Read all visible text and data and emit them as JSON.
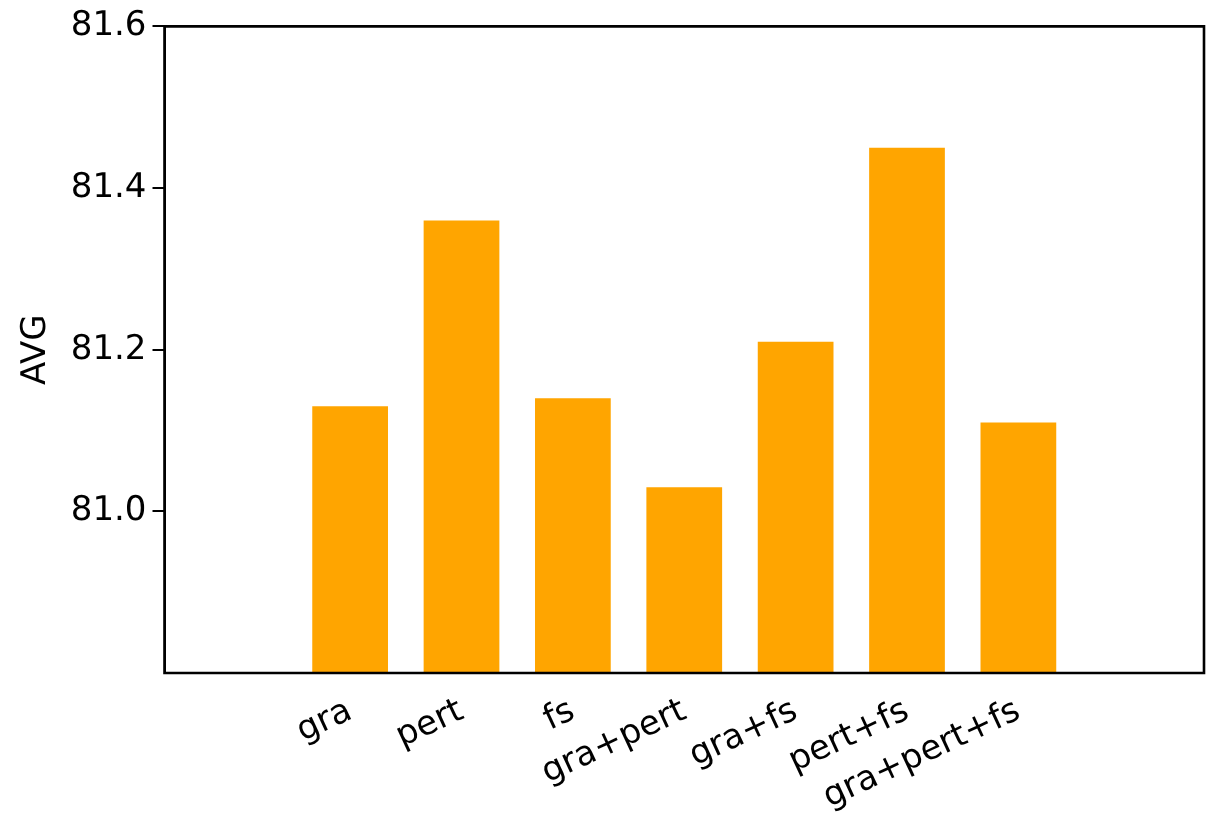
{
  "chart_data": {
    "type": "bar",
    "ylabel": "AVG",
    "categories": [
      "gra",
      "pert",
      "fs",
      "gra+pert",
      "gra+fs",
      "pert+fs",
      "gra+pert+fs"
    ],
    "values": [
      81.13,
      81.36,
      81.14,
      81.03,
      81.21,
      81.45,
      81.11
    ],
    "color": "#ffa500",
    "ylim": [
      80.8,
      81.6
    ],
    "yticks": [
      {
        "value": 81.0,
        "label": "81.0"
      },
      81.2,
      81.4,
      81.6
    ],
    "grid": false,
    "legend": false
  }
}
